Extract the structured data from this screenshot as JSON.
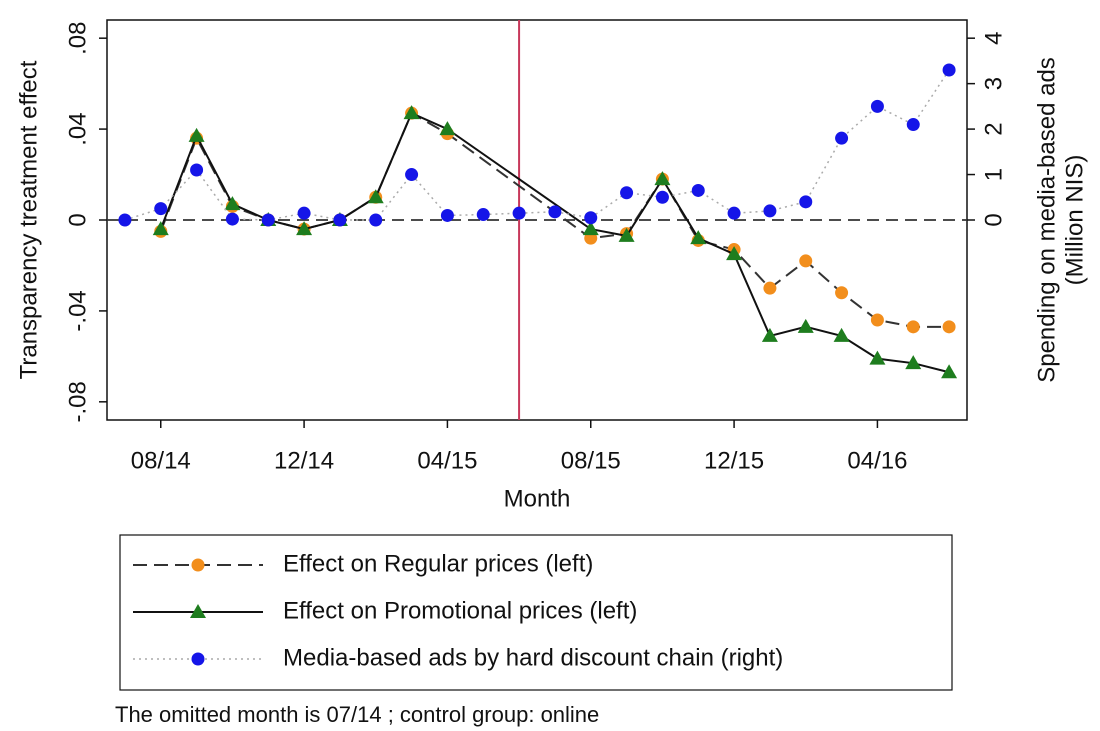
{
  "chart_data": {
    "type": "line",
    "xlabel": "Month",
    "ylabel": "Transparency treatment effect",
    "y2label": [
      "Spending on media-based ads",
      "(Million NIS)"
    ],
    "note": "The omitted month is 07/14 ; control group: online",
    "categories": [
      null,
      "08/14",
      null,
      null,
      null,
      "12/14",
      null,
      null,
      null,
      "04/15",
      null,
      null,
      null,
      "08/15",
      null,
      null,
      null,
      "12/15",
      null,
      null,
      null,
      "04/16",
      null,
      null
    ],
    "ylim": [
      -0.088,
      0.088
    ],
    "yticks": [
      {
        "value": -0.08,
        "label": "-.08"
      },
      {
        "value": -0.04,
        "label": "-.04"
      },
      0,
      {
        "value": 0.04,
        "label": ".04"
      },
      {
        "value": 0.08,
        "label": ".08"
      }
    ],
    "y2lim": [
      -4.4,
      4.4
    ],
    "y2ticks": [
      0,
      1,
      2,
      3,
      4
    ],
    "vline": {
      "at": 11,
      "color": "#c8385a"
    },
    "series": [
      {
        "name": "Effect on Regular prices (left)",
        "color": "#f28e1c",
        "line_color": "#333333",
        "line_style": "dashed",
        "marker": "circle",
        "connect_gaps": true,
        "values": [
          null,
          -0.005,
          0.036,
          0.006,
          0.0,
          -0.004,
          0.0,
          0.01,
          0.047,
          0.038,
          null,
          null,
          null,
          -0.008,
          -0.006,
          0.018,
          -0.009,
          -0.013,
          -0.03,
          -0.018,
          -0.032,
          -0.044,
          -0.047,
          -0.047
        ]
      },
      {
        "name": "Effect on Promotional prices (left)",
        "color": "#1e7d1e",
        "line_color": "#111111",
        "line_style": "solid",
        "marker": "triangle",
        "connect_gaps": true,
        "values": [
          null,
          -0.004,
          0.037,
          0.007,
          0.0,
          -0.004,
          0.0,
          0.01,
          0.047,
          0.04,
          null,
          null,
          null,
          -0.004,
          -0.007,
          0.018,
          -0.008,
          -0.015,
          -0.051,
          -0.047,
          -0.051,
          -0.061,
          -0.063,
          -0.067
        ]
      },
      {
        "name": "Media-based ads by hard discount chain (right)",
        "color": "#1515e8",
        "line_color": "#aaaaaa",
        "line_style": "dotted",
        "marker": "circle",
        "axis": "y2",
        "values": [
          0,
          0.25,
          1.1,
          0.02,
          0,
          0.15,
          0,
          0,
          1.0,
          0.1,
          0.12,
          0.15,
          0.18,
          0.05,
          0.6,
          0.5,
          0.65,
          0.15,
          0.2,
          0.4,
          1.8,
          2.5,
          2.1,
          3.3
        ]
      }
    ]
  }
}
